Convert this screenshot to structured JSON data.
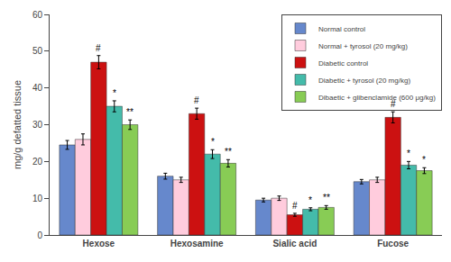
{
  "chart_data": {
    "type": "bar",
    "categories": [
      "Hexose",
      "Hexosamine",
      "Sialic acid",
      "Fucose"
    ],
    "series": [
      {
        "name": "Normal control",
        "color": "#6688cc",
        "values": [
          24.5,
          16.0,
          9.5,
          14.5
        ],
        "errors": [
          1.2,
          0.8,
          0.5,
          0.6
        ]
      },
      {
        "name": "Normal + tyrosol (20 mg/kg)",
        "color": "#ffccdd",
        "values": [
          26.0,
          15.0,
          10.0,
          15.0
        ],
        "errors": [
          1.5,
          0.7,
          0.6,
          0.7
        ]
      },
      {
        "name": "Diabetic control",
        "color": "#cc1111",
        "values": [
          47.0,
          33.0,
          5.5,
          32.0
        ],
        "errors": [
          1.8,
          1.5,
          0.4,
          1.5
        ]
      },
      {
        "name": "Diabetic + tyrosol (20 mg/kg)",
        "color": "#44bbaa",
        "values": [
          35.0,
          22.0,
          7.0,
          19.0
        ],
        "errors": [
          1.5,
          1.2,
          0.4,
          1.0
        ]
      },
      {
        "name": "Dibaetic + glibenclamide (600 μg/kg)",
        "color": "#88cc55",
        "values": [
          30.0,
          19.5,
          7.5,
          17.5
        ],
        "errors": [
          1.3,
          1.0,
          0.5,
          0.8
        ]
      }
    ],
    "annotations": [
      {
        "category": "Hexose",
        "series": "Diabetic control",
        "text": "#"
      },
      {
        "category": "Hexose",
        "series": "Diabetic + tyrosol (20 mg/kg)",
        "text": "*"
      },
      {
        "category": "Hexose",
        "series": "Dibaetic + glibenclamide (600 μg/kg)",
        "text": "**"
      },
      {
        "category": "Hexosamine",
        "series": "Diabetic control",
        "text": "#"
      },
      {
        "category": "Hexosamine",
        "series": "Diabetic + tyrosol (20 mg/kg)",
        "text": "*"
      },
      {
        "category": "Hexosamine",
        "series": "Dibaetic + glibenclamide (600 μg/kg)",
        "text": "**"
      },
      {
        "category": "Sialic acid",
        "series": "Diabetic control",
        "text": "#"
      },
      {
        "category": "Sialic acid",
        "series": "Diabetic + tyrosol (20 mg/kg)",
        "text": "*"
      },
      {
        "category": "Sialic acid",
        "series": "Dibaetic + glibenclamide (600 μg/kg)",
        "text": "**"
      },
      {
        "category": "Fucose",
        "series": "Diabetic control",
        "text": "#"
      },
      {
        "category": "Fucose",
        "series": "Diabetic + tyrosol (20 mg/kg)",
        "text": "*"
      },
      {
        "category": "Fucose",
        "series": "Dibaetic + glibenclamide (600 μg/kg)",
        "text": "*"
      }
    ],
    "ylabel": "mg/g defatted tissue",
    "ylim": [
      0,
      60
    ],
    "yticks": [
      0,
      10,
      20,
      30,
      40,
      50,
      60
    ],
    "grid": false,
    "legend": "upper right"
  }
}
